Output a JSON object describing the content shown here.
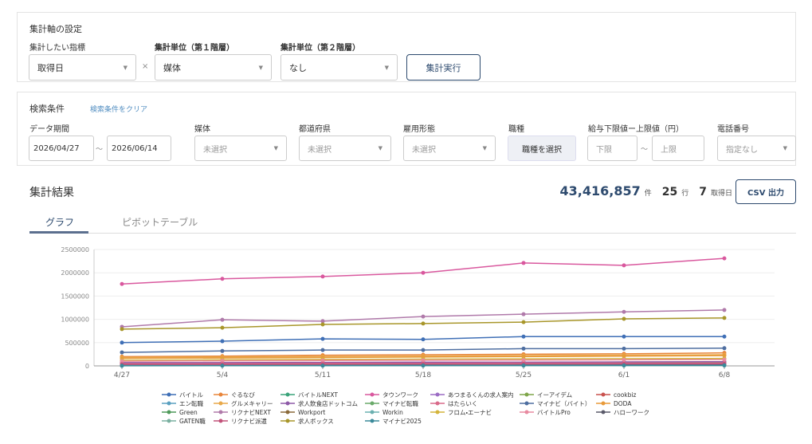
{
  "settings": {
    "title": "集計軸の設定",
    "metric_label": "集計したい指標",
    "metric_value": "取得日",
    "times": "×",
    "level1_label": "集計単位（第１階層）",
    "level1_value": "媒体",
    "level2_label": "集計単位（第２階層）",
    "level2_value": "なし",
    "run_button": "集計実行"
  },
  "search": {
    "title": "検索条件",
    "clear": "検索条件をクリア",
    "period_label": "データ期間",
    "period_from": "2026/04/27",
    "period_sep": "〜",
    "period_to": "2026/06/14",
    "media_label": "媒体",
    "media_value": "未選択",
    "pref_label": "都道府県",
    "pref_value": "未選択",
    "employment_label": "雇用形態",
    "employment_value": "未選択",
    "job_label": "職種",
    "job_button": "職種を選択",
    "salary_label": "給与下限値ー上限値（円）",
    "salary_min": "下限",
    "salary_sep": "〜",
    "salary_max": "上限",
    "phone_label": "電話番号",
    "phone_value": "指定なし"
  },
  "results": {
    "title": "集計結果",
    "total": "43,416,857",
    "total_unit": "件",
    "rows": "25",
    "rows_unit": "行",
    "days": "7",
    "days_unit": "取得日",
    "csv_button": "CSV 出力"
  },
  "tabs": {
    "graph": "グラフ",
    "pivot": "ピボットテーブル"
  },
  "chart_data": {
    "type": "line",
    "categories": [
      "4/27",
      "5/4",
      "5/11",
      "5/18",
      "5/25",
      "6/1",
      "6/8"
    ],
    "ylim": [
      0,
      2500000
    ],
    "yticks": [
      0,
      500000,
      1000000,
      1500000,
      2000000,
      2500000
    ],
    "grid": true,
    "legend": "bottom",
    "series": [
      {
        "name": "バイトル",
        "color": "#3f6fb6",
        "values": [
          500000,
          530000,
          580000,
          570000,
          630000,
          630000,
          630000
        ]
      },
      {
        "name": "ぐるなび",
        "color": "#e8853a",
        "values": [
          200000,
          210000,
          230000,
          240000,
          250000,
          260000,
          280000
        ]
      },
      {
        "name": "バイトルNEXT",
        "color": "#3aa37a",
        "values": [
          30000,
          30000,
          35000,
          35000,
          40000,
          40000,
          45000
        ]
      },
      {
        "name": "タウンワーク",
        "color": "#d9589e",
        "values": [
          1760000,
          1870000,
          1920000,
          2000000,
          2210000,
          2160000,
          2310000
        ]
      },
      {
        "name": "あつまるくんの求人案内",
        "color": "#9b6cc4",
        "values": [
          20000,
          20000,
          25000,
          25000,
          25000,
          30000,
          30000
        ]
      },
      {
        "name": "イーアイデム",
        "color": "#7fa64a",
        "values": [
          60000,
          60000,
          65000,
          65000,
          70000,
          70000,
          75000
        ]
      },
      {
        "name": "cookbiz",
        "color": "#c9524e",
        "values": [
          10000,
          10000,
          10000,
          12000,
          12000,
          13000,
          13000
        ]
      },
      {
        "name": "エン転職",
        "color": "#5aa0c0",
        "values": [
          40000,
          40000,
          45000,
          45000,
          50000,
          50000,
          55000
        ]
      },
      {
        "name": "グルメキャリー",
        "color": "#e8a94a",
        "values": [
          180000,
          190000,
          200000,
          210000,
          220000,
          230000,
          240000
        ]
      },
      {
        "name": "求人飲食店ドットコム",
        "color": "#8e5aa8",
        "values": [
          70000,
          70000,
          75000,
          80000,
          80000,
          85000,
          90000
        ]
      },
      {
        "name": "マイナビ転職",
        "color": "#6aaa6a",
        "values": [
          30000,
          30000,
          30000,
          35000,
          35000,
          35000,
          40000
        ]
      },
      {
        "name": "はたらいく",
        "color": "#d96a8a",
        "values": [
          50000,
          50000,
          55000,
          55000,
          60000,
          60000,
          60000
        ]
      },
      {
        "name": "マイナビ（バイト）",
        "color": "#4e6ea0",
        "values": [
          290000,
          320000,
          340000,
          340000,
          370000,
          370000,
          380000
        ]
      },
      {
        "name": "DODA",
        "color": "#e89a3a",
        "values": [
          160000,
          170000,
          180000,
          190000,
          200000,
          210000,
          220000
        ]
      },
      {
        "name": "Green",
        "color": "#4f9a5a",
        "values": [
          15000,
          15000,
          18000,
          18000,
          20000,
          20000,
          22000
        ]
      },
      {
        "name": "リクナビNEXT",
        "color": "#b07aaa",
        "values": [
          840000,
          990000,
          960000,
          1060000,
          1110000,
          1160000,
          1200000
        ]
      },
      {
        "name": "Workport",
        "color": "#8a6a3a",
        "values": [
          25000,
          25000,
          28000,
          28000,
          30000,
          30000,
          32000
        ]
      },
      {
        "name": "Workin",
        "color": "#6ab0b0",
        "values": [
          5000,
          5000,
          6000,
          6000,
          7000,
          7000,
          8000
        ]
      },
      {
        "name": "フロム・エーナビ",
        "color": "#d4b43a",
        "values": [
          120000,
          130000,
          140000,
          145000,
          150000,
          155000,
          160000
        ]
      },
      {
        "name": "バイトルPro",
        "color": "#e88aa0",
        "values": [
          100000,
          110000,
          115000,
          120000,
          125000,
          130000,
          135000
        ]
      },
      {
        "name": "ハローワーク",
        "color": "#5a5a6a",
        "values": [
          20000,
          20000,
          20000,
          22000,
          22000,
          25000,
          25000
        ]
      },
      {
        "name": "GATEN職",
        "color": "#7ab0a0",
        "values": [
          8000,
          8000,
          9000,
          9000,
          10000,
          10000,
          11000
        ]
      },
      {
        "name": "リクナビ派遣",
        "color": "#c2527a",
        "values": [
          35000,
          35000,
          38000,
          40000,
          42000,
          44000,
          45000
        ]
      },
      {
        "name": "求人ボックス",
        "color": "#a8962a",
        "values": [
          790000,
          820000,
          890000,
          910000,
          940000,
          1010000,
          1030000
        ]
      },
      {
        "name": "マイナビ2025",
        "color": "#3a8a9a",
        "values": [
          3000,
          4000,
          5000,
          6000,
          8000,
          10000,
          12000
        ]
      }
    ]
  }
}
